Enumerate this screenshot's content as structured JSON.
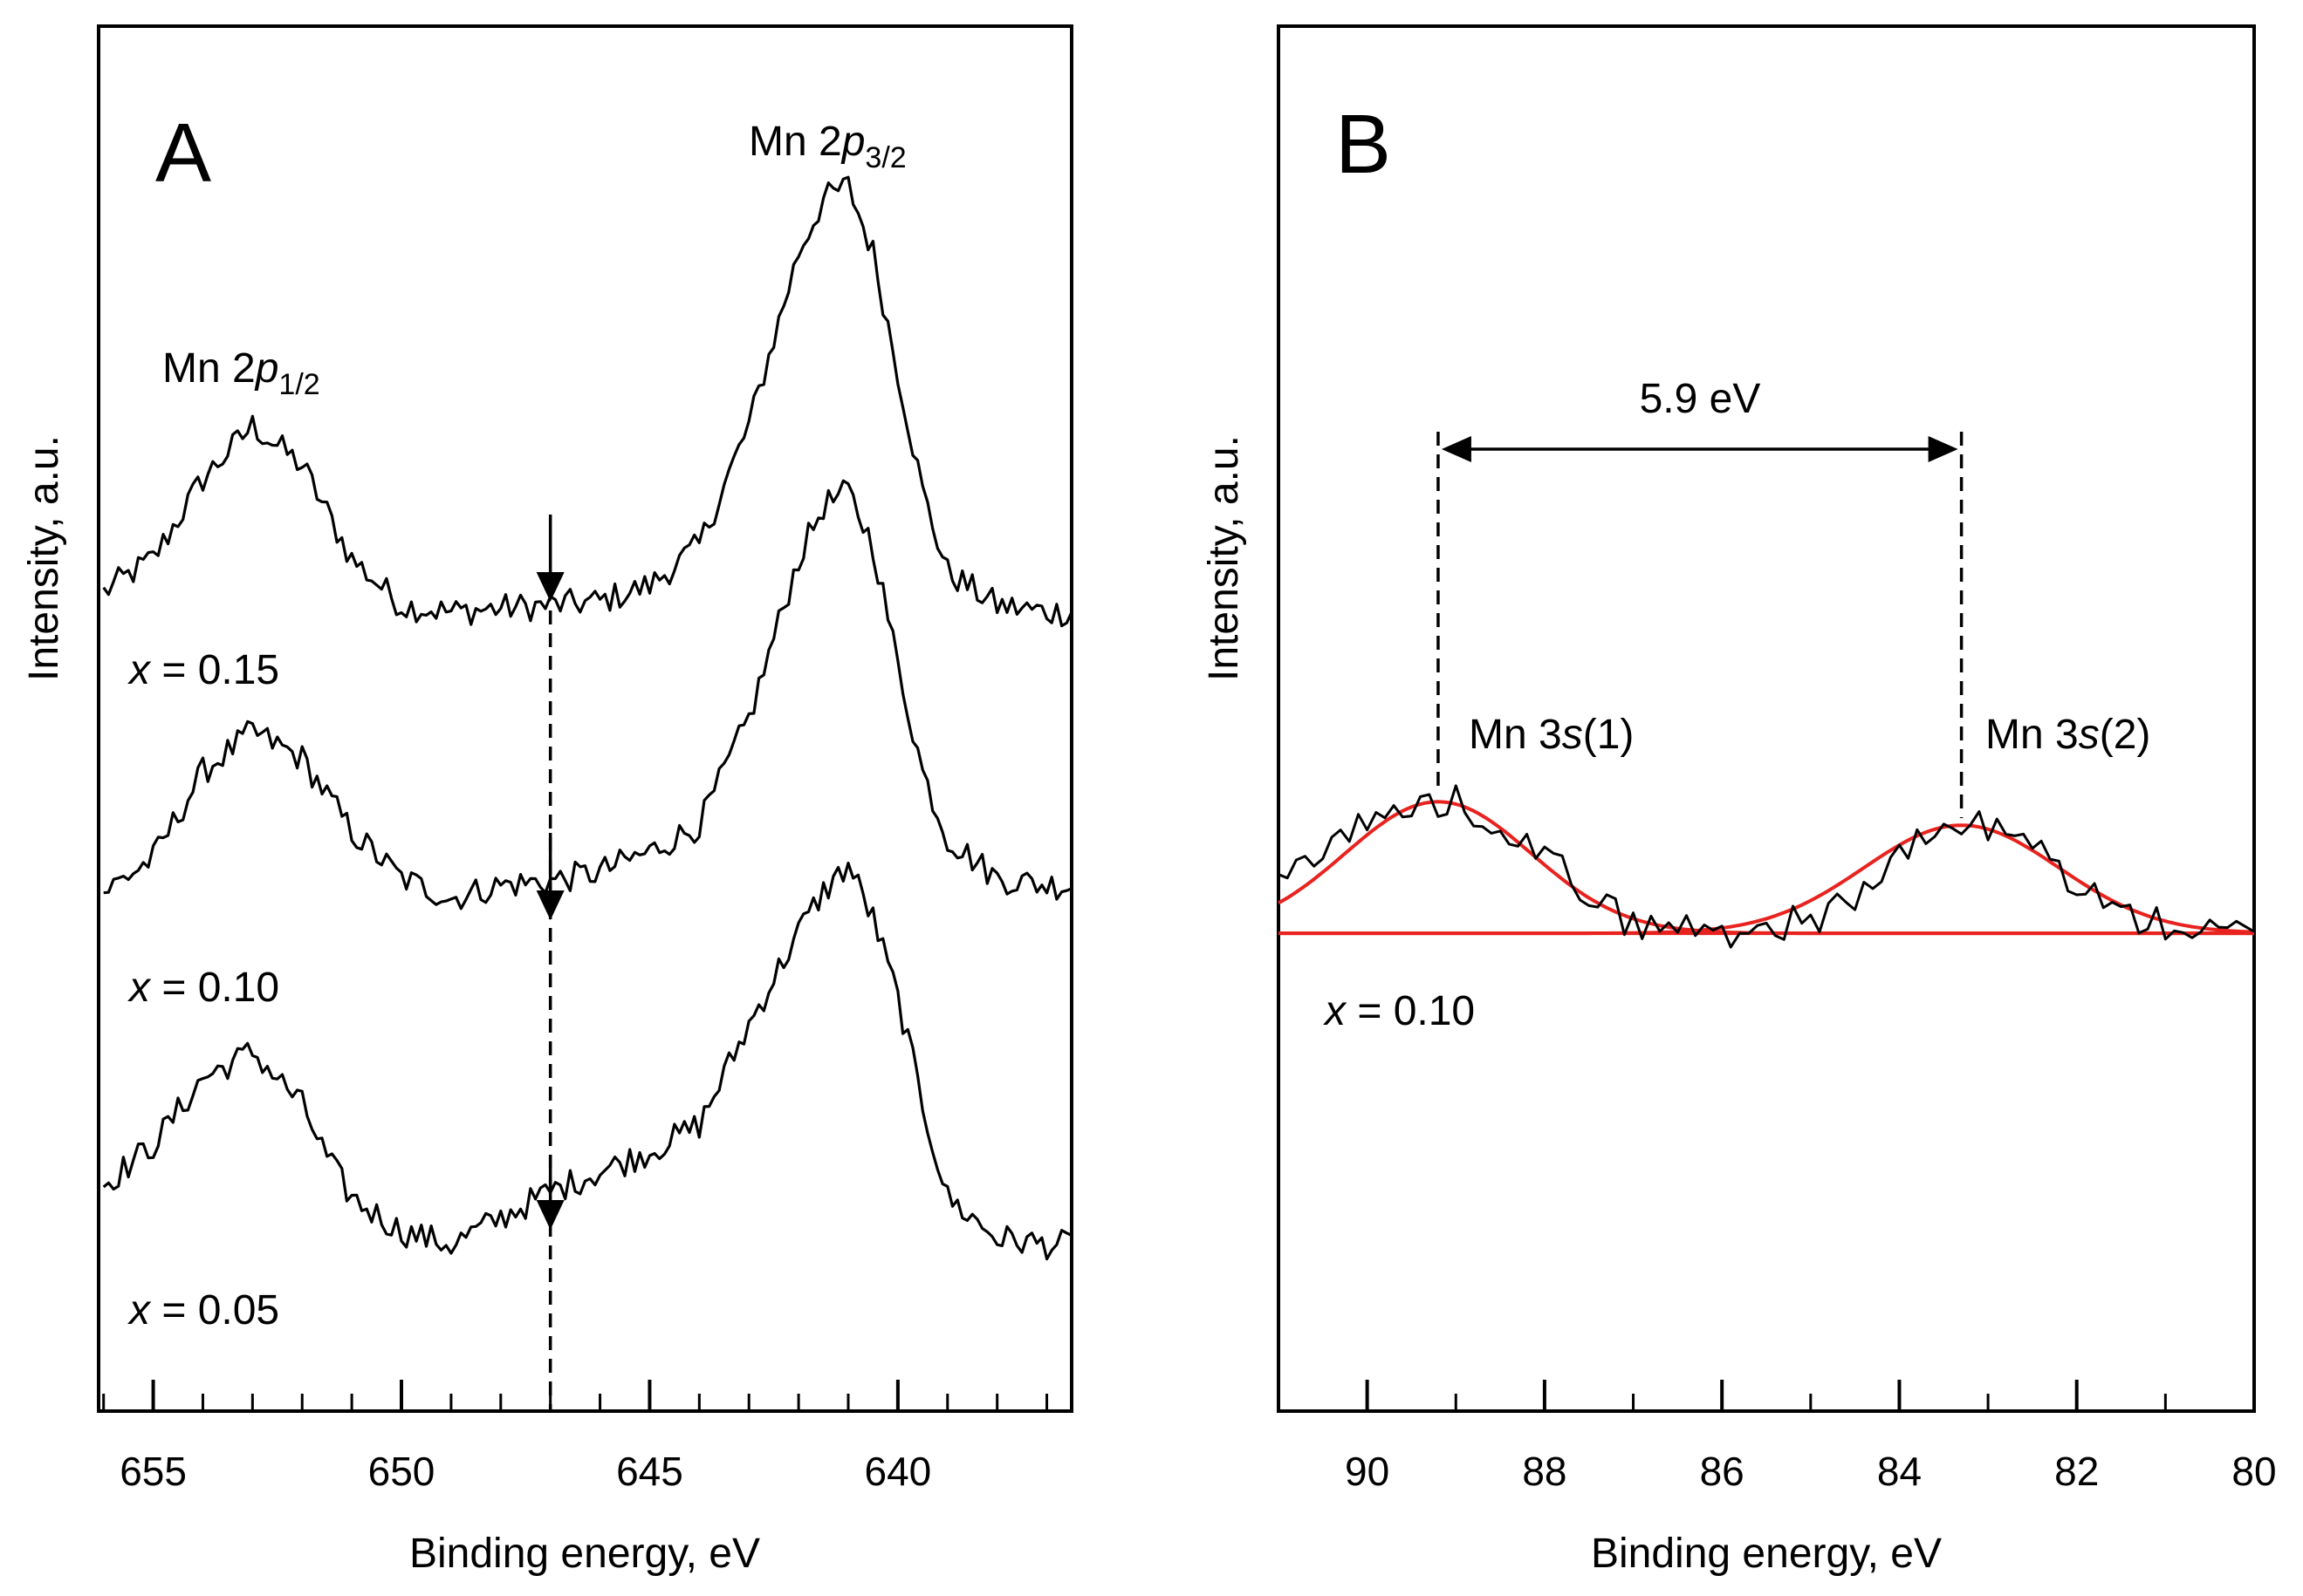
{
  "chart_data": [
    {
      "type": "line",
      "panel_label": "A",
      "xlabel": "Binding energy, eV",
      "ylabel": "Intensity, a.u.",
      "xlim": [
        656.1,
        636.5
      ],
      "ylim": [
        -4,
        100
      ],
      "xticks": [
        655,
        650,
        645,
        640
      ],
      "xtick_labels": [
        "655",
        "650",
        "645",
        "640"
      ],
      "series": [
        {
          "name": "x = 0.15",
          "label_var": "x",
          "label_rest": " = 0.15",
          "x": [
            656,
            655,
            654,
            653,
            652,
            651,
            650,
            649,
            648,
            647,
            646,
            645,
            644,
            643,
            642,
            641.5,
            641,
            640.5,
            640,
            639.5,
            639,
            638,
            637,
            636.5
          ],
          "y": [
            57.5,
            60,
            66,
            70,
            67,
            60,
            56.5,
            56,
            56.3,
            56.5,
            56.8,
            58,
            61,
            70,
            83,
            87,
            88,
            83,
            74,
            65,
            59,
            56.5,
            56,
            56
          ]
        },
        {
          "name": "x = 0.10",
          "label_var": "x",
          "label_rest": " = 0.10",
          "x": [
            656,
            655,
            654,
            653,
            652,
            651,
            650,
            649,
            648,
            647,
            646,
            645,
            644,
            643,
            642,
            641.5,
            641,
            640.5,
            640,
            639.5,
            639,
            638,
            637,
            636.5
          ],
          "y": [
            35,
            37.5,
            44,
            47,
            45,
            39.5,
            36,
            34.5,
            35.5,
            35.8,
            36.5,
            38,
            40,
            48,
            60,
            64,
            65,
            61,
            52,
            44,
            39,
            36,
            35.5,
            35.5
          ]
        },
        {
          "name": "x = 0.05",
          "label_var": "x",
          "label_rest": " = 0.05",
          "x": [
            656,
            655,
            654,
            653,
            652,
            651.5,
            651,
            650,
            649,
            648,
            647,
            646,
            645,
            644,
            643,
            642,
            641.5,
            641,
            640.5,
            640,
            639.5,
            639,
            638,
            637,
            636.5
          ],
          "y": [
            13,
            16,
            21,
            23,
            19,
            15,
            12,
            9.5,
            8.5,
            10.5,
            12.5,
            14,
            15.5,
            17.5,
            25,
            32,
            35,
            37,
            33,
            27,
            19,
            12,
            9,
            8.5,
            8.5
          ]
        }
      ],
      "annotations": {
        "peak_2p12": {
          "main": "Mn 2",
          "italic": "p",
          "sub": "1/2"
        },
        "peak_2p32": {
          "main": "Mn 2",
          "italic": "p",
          "sub": "3/2"
        }
      },
      "marker_energy": 647
    },
    {
      "type": "line",
      "panel_label": "B",
      "xlabel": "Binding energy, eV",
      "ylabel": "Intensity, a.u.",
      "xlim": [
        91,
        80
      ],
      "ylim": [
        0,
        100
      ],
      "xticks": [
        90,
        88,
        86,
        84,
        82,
        80
      ],
      "xtick_labels": [
        "90",
        "88",
        "86",
        "84",
        "82",
        "80"
      ],
      "baseline": 34.5,
      "series": [
        {
          "name": "x = 0.10 data",
          "x": [
            91,
            90.5,
            90,
            89.5,
            89.2,
            89,
            88.5,
            88,
            87.5,
            87,
            86.5,
            86,
            85.5,
            85,
            84.5,
            84,
            83.5,
            83.2,
            83,
            82.5,
            82,
            81.5,
            81,
            80.5,
            80
          ],
          "y": [
            38,
            41,
            42.5,
            43.5,
            44,
            44,
            42.5,
            40,
            37.5,
            35,
            35,
            34.5,
            35,
            35.5,
            37,
            40,
            42,
            42.5,
            42,
            41,
            38,
            36,
            35,
            34.5,
            34.5
          ]
        },
        {
          "name": "Mn 3s(1) fit",
          "type": "gaussian",
          "center": 89.2,
          "sigma": 1.05,
          "amplitude": 9.5
        },
        {
          "name": "Mn 3s(2) fit",
          "type": "gaussian",
          "center": 83.3,
          "sigma": 1.1,
          "amplitude": 7.8
        }
      ],
      "series_label": {
        "var": "x",
        "rest": " = 0.10"
      },
      "peaks": [
        {
          "label_main": "Mn 3",
          "label_italic": "s",
          "label_rest": "(1)",
          "energy": 89.2
        },
        {
          "label_main": "Mn 3",
          "label_italic": "s",
          "label_rest": "(2)",
          "energy": 83.3
        }
      ],
      "splitting_label": "5.9 eV",
      "colors": {
        "fit": "#e8231f",
        "data": "#000000"
      }
    }
  ]
}
